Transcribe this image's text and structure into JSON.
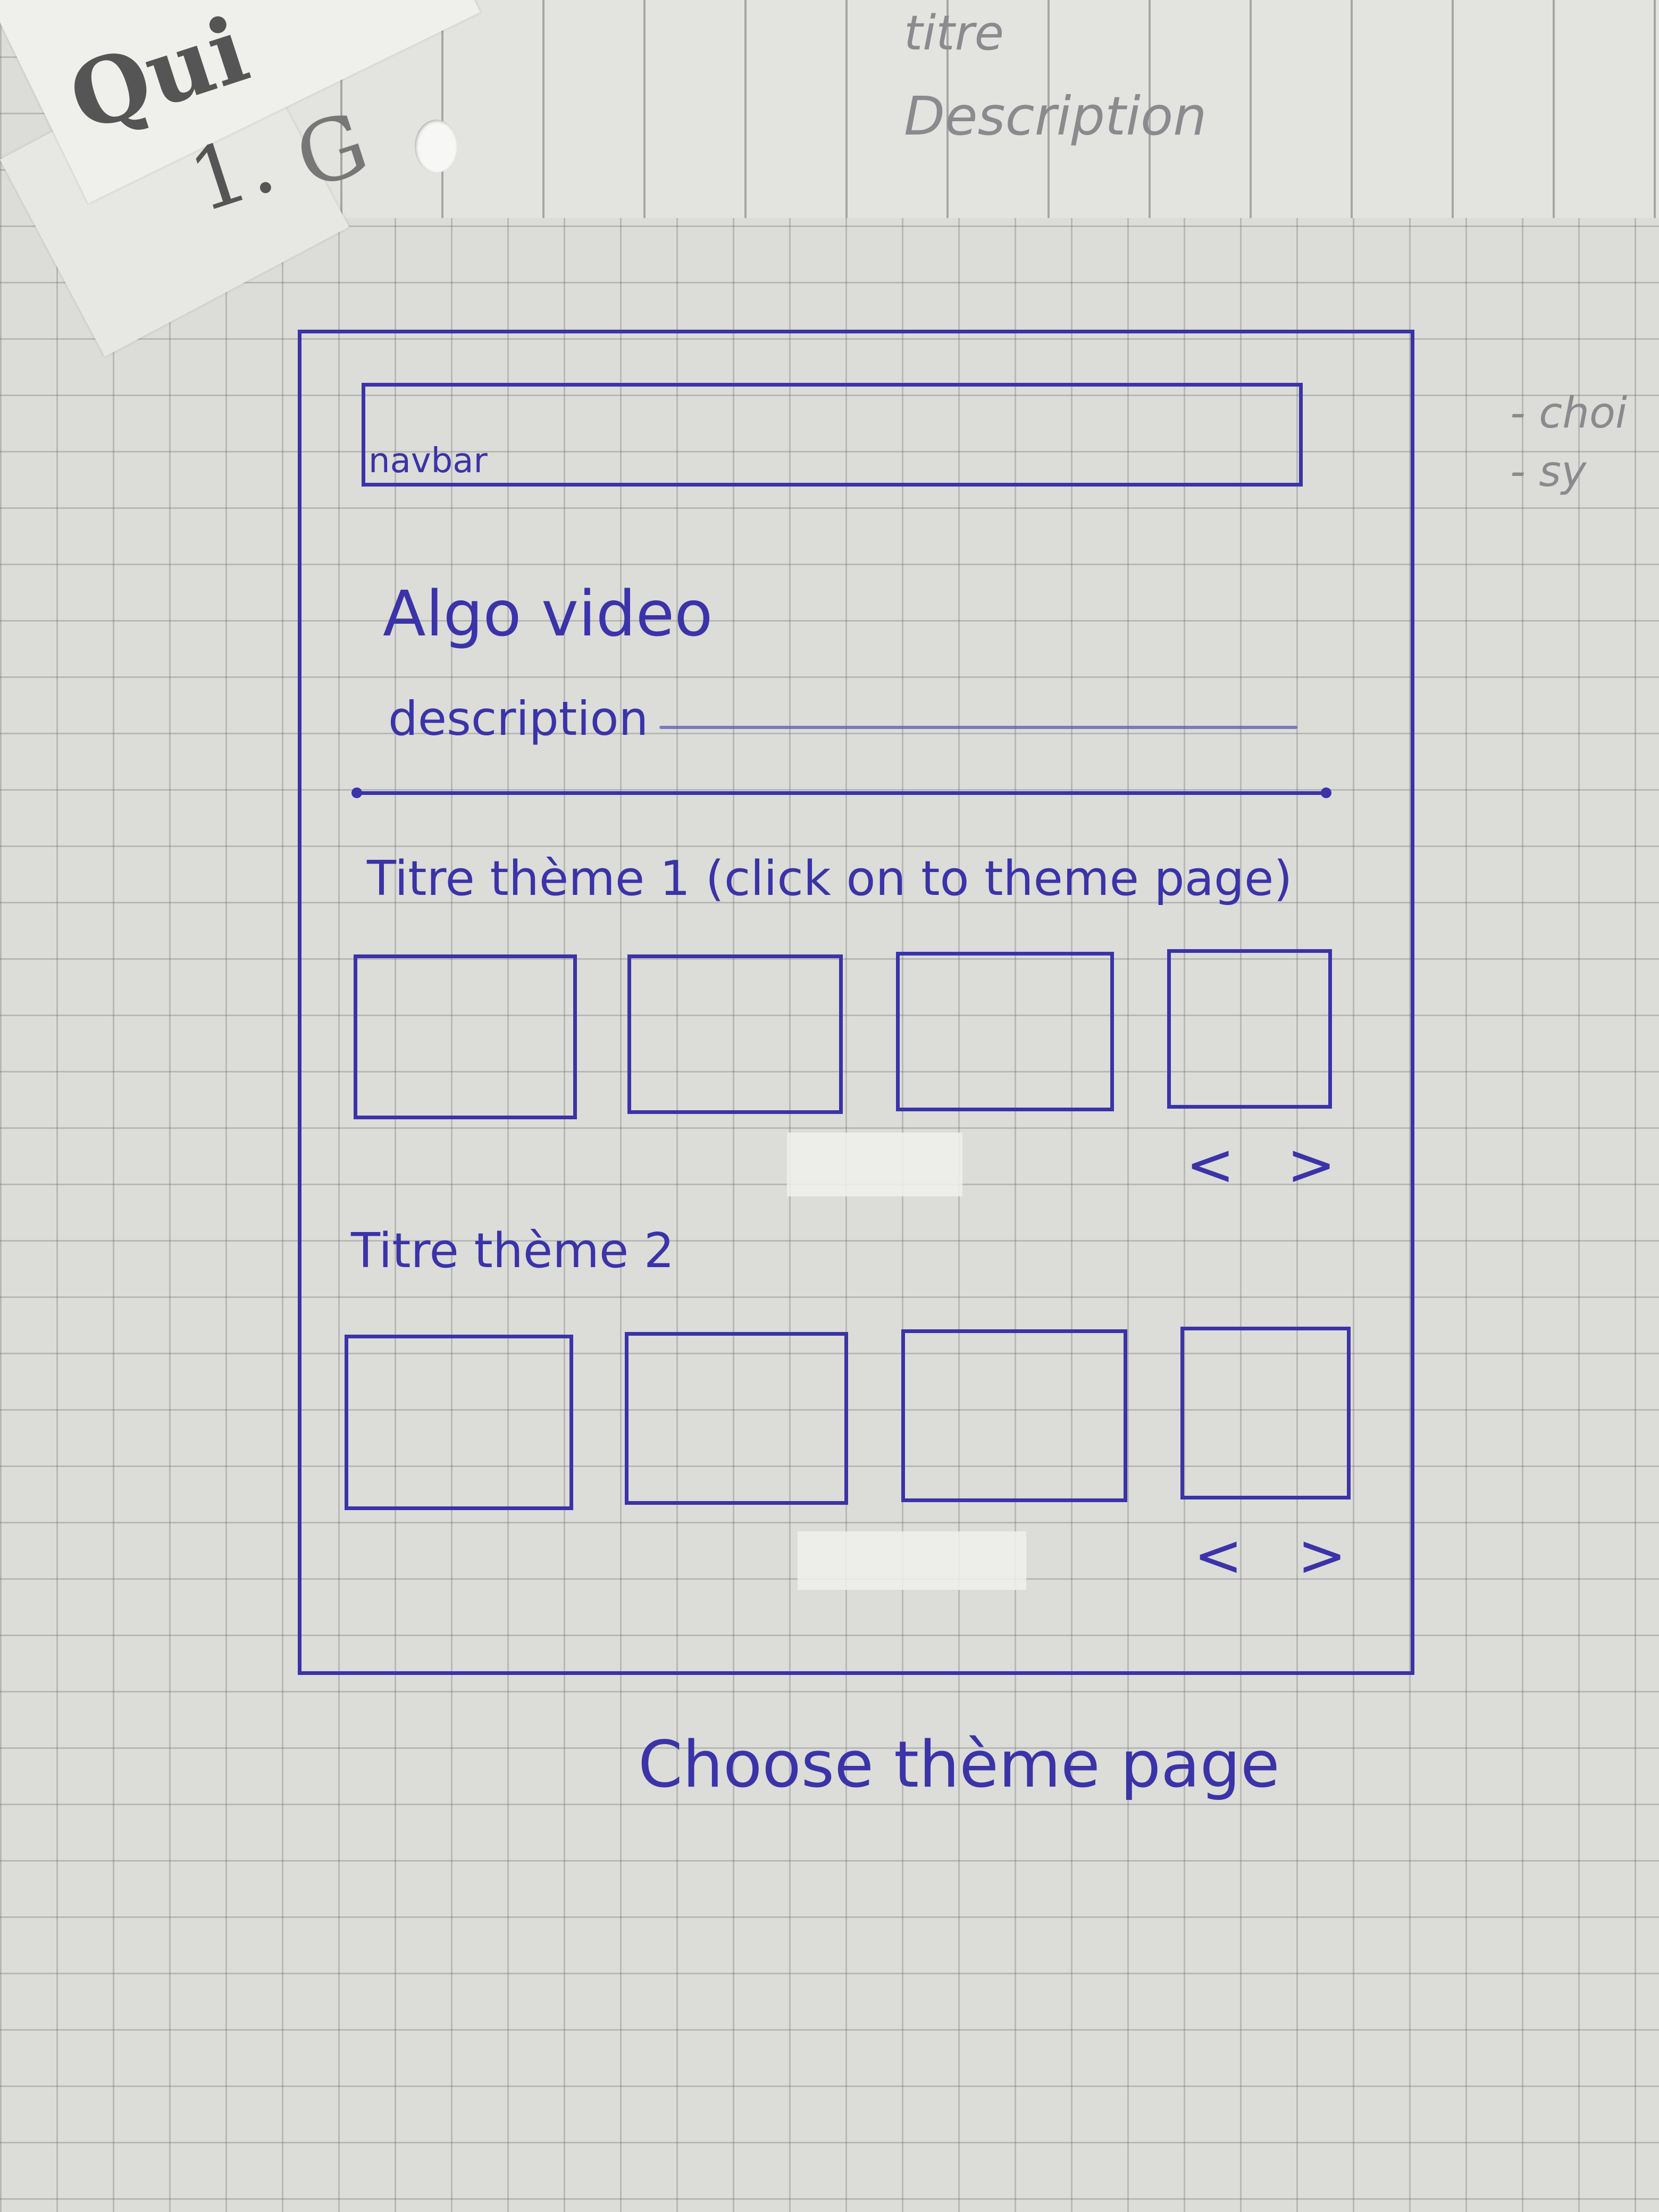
{
  "sketch": {
    "scrap": {
      "word": "Qui",
      "prefix": "1.",
      "letter": "G"
    },
    "top_notes": {
      "line1": "titre",
      "line2": "Description"
    },
    "side_notes": {
      "item1": "- choi",
      "item2": "- sy"
    },
    "navbar_label": "navbar",
    "title": "Algo video",
    "description_label": "description",
    "themes": [
      {
        "title": "Titre thème 1 (click on to theme page)",
        "tiles": 4,
        "prev": "<",
        "next": ">"
      },
      {
        "title": "Titre thème 2",
        "tiles": 4,
        "prev": "<",
        "next": ">"
      }
    ],
    "caption": "Choose thème page"
  },
  "colors": {
    "ink": "#3b33a8",
    "grid": "#5a5a5f",
    "paper": "#dcdcd8"
  }
}
